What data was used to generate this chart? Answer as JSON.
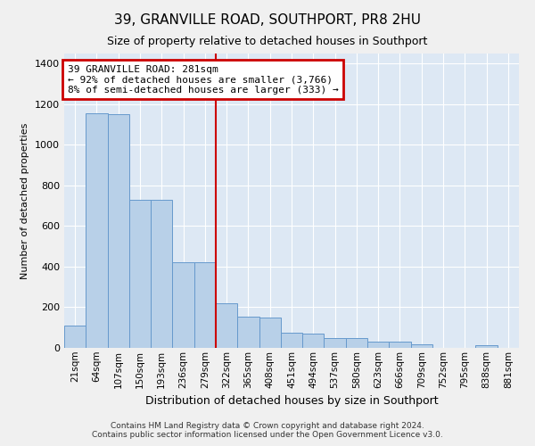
{
  "title": "39, GRANVILLE ROAD, SOUTHPORT, PR8 2HU",
  "subtitle": "Size of property relative to detached houses in Southport",
  "xlabel": "Distribution of detached houses by size in Southport",
  "ylabel": "Number of detached properties",
  "footer_line1": "Contains HM Land Registry data © Crown copyright and database right 2024.",
  "footer_line2": "Contains public sector information licensed under the Open Government Licence v3.0.",
  "bar_labels": [
    "21sqm",
    "64sqm",
    "107sqm",
    "150sqm",
    "193sqm",
    "236sqm",
    "279sqm",
    "322sqm",
    "365sqm",
    "408sqm",
    "451sqm",
    "494sqm",
    "537sqm",
    "580sqm",
    "623sqm",
    "666sqm",
    "709sqm",
    "752sqm",
    "795sqm",
    "838sqm",
    "881sqm"
  ],
  "bar_values": [
    110,
    1155,
    1150,
    730,
    730,
    420,
    420,
    220,
    155,
    150,
    75,
    70,
    50,
    50,
    32,
    32,
    18,
    0,
    0,
    15,
    0
  ],
  "bar_color": "#b8d0e8",
  "bar_edge_color": "#6699cc",
  "background_color": "#dde8f4",
  "grid_color": "#ffffff",
  "annotation_line1": "39 GRANVILLE ROAD: 281sqm",
  "annotation_line2": "← 92% of detached houses are smaller (3,766)",
  "annotation_line3": "8% of semi-detached houses are larger (333) →",
  "annotation_box_color": "#cc0000",
  "vline_x": 6.5,
  "vline_color": "#cc0000",
  "ylim": [
    0,
    1450
  ],
  "yticks": [
    0,
    200,
    400,
    600,
    800,
    1000,
    1200,
    1400
  ],
  "fig_bg": "#f0f0f0"
}
